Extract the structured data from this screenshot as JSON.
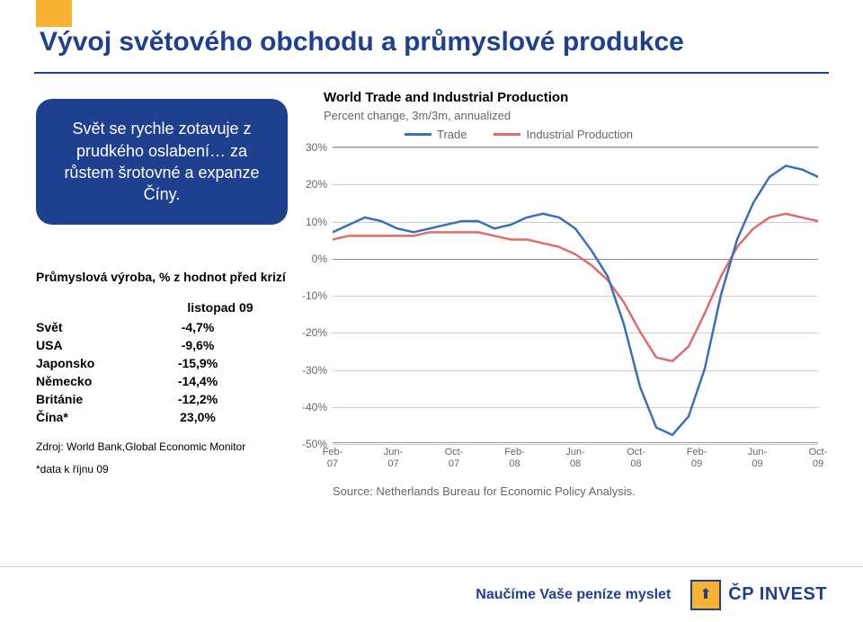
{
  "page": {
    "title": "Vývoj světového obchodu a průmyslové produkce"
  },
  "callout": {
    "text": "Svět se rychle zotavuje z prudkého oslabení… za růstem šrotovné a expanze Číny."
  },
  "table": {
    "caption": "Průmyslová výroba, % z hodnot před krizí",
    "header": "listopad 09",
    "rows": [
      {
        "label": "Svět",
        "value": "-4,7%"
      },
      {
        "label": "USA",
        "value": "-9,6%"
      },
      {
        "label": "Japonsko",
        "value": "-15,9%"
      },
      {
        "label": "Německo",
        "value": "-14,4%"
      },
      {
        "label": "Británie",
        "value": "-12,2%"
      },
      {
        "label": "Čína*",
        "value": "23,0%"
      }
    ],
    "source": "Zdroj: World Bank,Global Economic Monitor",
    "footnote": "*data k říjnu 09"
  },
  "chart": {
    "title": "World Trade and Industrial Production",
    "subtitle": "Percent change, 3m/3m, annualized",
    "legend": [
      {
        "label": "Trade",
        "color": "#3b6fb6"
      },
      {
        "label": "Industrial Production",
        "color": "#e06b6b"
      }
    ],
    "ylim": [
      -50,
      30
    ],
    "ytick_step": 10,
    "yticks": [
      30,
      20,
      10,
      0,
      -10,
      -20,
      -30,
      -40,
      -50
    ],
    "ytick_labels": [
      "30%",
      "20%",
      "10%",
      "0%",
      "-10%",
      "-20%",
      "-30%",
      "-40%",
      "-50%"
    ],
    "xlabels": [
      "Feb-\n07",
      "Jun-\n07",
      "Oct-\n07",
      "Feb-\n08",
      "Jun-\n08",
      "Oct-\n08",
      "Feb-\n09",
      "Jun-\n09",
      "Oct-\n09"
    ],
    "grid_color": "#cccccc",
    "zero_color": "#888888",
    "background_color": "#ffffff",
    "series": {
      "trade": {
        "color": "#3b6fb6",
        "line_width": 2.5,
        "points": [
          [
            0,
            7
          ],
          [
            1,
            9
          ],
          [
            2,
            11
          ],
          [
            3,
            10
          ],
          [
            4,
            8
          ],
          [
            5,
            7
          ],
          [
            6,
            8
          ],
          [
            7,
            9
          ],
          [
            8,
            10
          ],
          [
            9,
            10
          ],
          [
            10,
            8
          ],
          [
            11,
            9
          ],
          [
            12,
            11
          ],
          [
            13,
            12
          ],
          [
            14,
            11
          ],
          [
            15,
            8
          ],
          [
            16,
            2
          ],
          [
            17,
            -5
          ],
          [
            18,
            -18
          ],
          [
            19,
            -35
          ],
          [
            20,
            -46
          ],
          [
            21,
            -48
          ],
          [
            22,
            -43
          ],
          [
            23,
            -30
          ],
          [
            24,
            -10
          ],
          [
            25,
            5
          ],
          [
            26,
            15
          ],
          [
            27,
            22
          ],
          [
            28,
            25
          ],
          [
            29,
            24
          ],
          [
            30,
            22
          ]
        ]
      },
      "industrial": {
        "color": "#e06b6b",
        "line_width": 2.5,
        "points": [
          [
            0,
            5
          ],
          [
            1,
            6
          ],
          [
            2,
            6
          ],
          [
            3,
            6
          ],
          [
            4,
            6
          ],
          [
            5,
            6
          ],
          [
            6,
            7
          ],
          [
            7,
            7
          ],
          [
            8,
            7
          ],
          [
            9,
            7
          ],
          [
            10,
            6
          ],
          [
            11,
            5
          ],
          [
            12,
            5
          ],
          [
            13,
            4
          ],
          [
            14,
            3
          ],
          [
            15,
            1
          ],
          [
            16,
            -2
          ],
          [
            17,
            -6
          ],
          [
            18,
            -12
          ],
          [
            19,
            -20
          ],
          [
            20,
            -27
          ],
          [
            21,
            -28
          ],
          [
            22,
            -24
          ],
          [
            23,
            -15
          ],
          [
            24,
            -5
          ],
          [
            25,
            3
          ],
          [
            26,
            8
          ],
          [
            27,
            11
          ],
          [
            28,
            12
          ],
          [
            29,
            11
          ],
          [
            30,
            10
          ]
        ]
      }
    },
    "x_domain": [
      0,
      30
    ],
    "source": "Source: Netherlands Bureau for Economic Policy Analysis."
  },
  "footer": {
    "slogan": "Naučíme Vaše peníze myslet",
    "logo_text": "ČP INVEST",
    "logo_mark_color": "#f9b233",
    "logo_border_color": "#1f3f8f"
  },
  "colors": {
    "brand_blue": "#1f3f8f",
    "brand_orange": "#f9b233"
  }
}
